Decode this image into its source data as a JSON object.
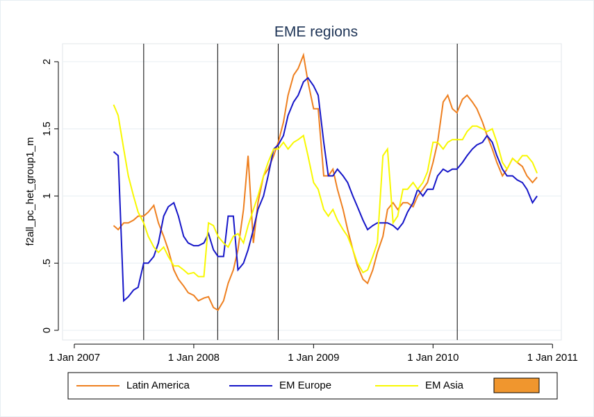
{
  "chart_data": {
    "type": "line",
    "title": "EME regions",
    "y_label": "f2all_pc_het_group1_m",
    "x": [
      "2007-05-01",
      "2007-05-15",
      "2007-06-01",
      "2007-06-15",
      "2007-07-01",
      "2007-07-15",
      "2007-08-01",
      "2007-08-15",
      "2007-09-01",
      "2007-09-15",
      "2007-10-01",
      "2007-10-15",
      "2007-11-01",
      "2007-11-15",
      "2007-12-01",
      "2007-12-15",
      "2008-01-01",
      "2008-01-15",
      "2008-02-01",
      "2008-02-15",
      "2008-03-01",
      "2008-03-15",
      "2008-04-01",
      "2008-04-15",
      "2008-05-01",
      "2008-05-15",
      "2008-06-01",
      "2008-06-15",
      "2008-07-01",
      "2008-07-15",
      "2008-08-01",
      "2008-08-15",
      "2008-09-01",
      "2008-09-15",
      "2008-10-01",
      "2008-10-15",
      "2008-11-01",
      "2008-11-15",
      "2008-12-01",
      "2008-12-15",
      "2009-01-01",
      "2009-01-15",
      "2009-02-01",
      "2009-02-15",
      "2009-03-01",
      "2009-03-15",
      "2009-04-01",
      "2009-04-15",
      "2009-05-01",
      "2009-05-15",
      "2009-06-01",
      "2009-06-15",
      "2009-07-01",
      "2009-07-15",
      "2009-08-01",
      "2009-08-15",
      "2009-09-01",
      "2009-09-15",
      "2009-10-01",
      "2009-10-15",
      "2009-11-01",
      "2009-11-15",
      "2009-12-01",
      "2009-12-15",
      "2010-01-01",
      "2010-01-15",
      "2010-02-01",
      "2010-02-15",
      "2010-03-01",
      "2010-03-15",
      "2010-04-01",
      "2010-04-15",
      "2010-05-01",
      "2010-05-15",
      "2010-06-01",
      "2010-06-15",
      "2010-07-01",
      "2010-07-15",
      "2010-08-01",
      "2010-08-15",
      "2010-09-01",
      "2010-09-15",
      "2010-10-01",
      "2010-10-15",
      "2010-11-01",
      "2010-11-15"
    ],
    "series": [
      {
        "name": "Latin America",
        "color": "#ee7f1f",
        "values": [
          0.78,
          0.75,
          0.8,
          0.8,
          0.82,
          0.85,
          0.85,
          0.88,
          0.93,
          0.8,
          0.7,
          0.6,
          0.45,
          0.38,
          0.33,
          0.28,
          0.26,
          0.22,
          0.24,
          0.25,
          0.17,
          0.15,
          0.22,
          0.35,
          0.45,
          0.6,
          0.9,
          1.3,
          0.65,
          0.95,
          1.15,
          1.2,
          1.3,
          1.4,
          1.55,
          1.75,
          1.9,
          1.95,
          2.05,
          1.85,
          1.65,
          1.65,
          1.15,
          1.15,
          1.2,
          1.05,
          0.9,
          0.75,
          0.6,
          0.48,
          0.38,
          0.35,
          0.45,
          0.58,
          0.7,
          0.9,
          0.95,
          0.9,
          0.95,
          0.95,
          0.92,
          1.0,
          1.05,
          1.1,
          1.25,
          1.4,
          1.7,
          1.75,
          1.65,
          1.62,
          1.72,
          1.75,
          1.7,
          1.65,
          1.55,
          1.45,
          1.35,
          1.25,
          1.15,
          1.2,
          1.28,
          1.25,
          1.22,
          1.15,
          1.1,
          1.14
        ]
      },
      {
        "name": "EM Europe",
        "color": "#1515c8",
        "values": [
          1.33,
          1.3,
          0.22,
          0.25,
          0.3,
          0.32,
          0.5,
          0.5,
          0.55,
          0.65,
          0.85,
          0.92,
          0.95,
          0.85,
          0.7,
          0.65,
          0.63,
          0.63,
          0.65,
          0.72,
          0.6,
          0.55,
          0.55,
          0.85,
          0.85,
          0.45,
          0.5,
          0.6,
          0.75,
          0.9,
          1.0,
          1.15,
          1.35,
          1.38,
          1.45,
          1.6,
          1.7,
          1.75,
          1.85,
          1.88,
          1.82,
          1.75,
          1.4,
          1.15,
          1.15,
          1.2,
          1.15,
          1.1,
          1.0,
          0.92,
          0.82,
          0.75,
          0.78,
          0.8,
          0.8,
          0.8,
          0.78,
          0.75,
          0.8,
          0.88,
          0.95,
          1.05,
          1.0,
          1.05,
          1.05,
          1.15,
          1.2,
          1.18,
          1.2,
          1.2,
          1.25,
          1.3,
          1.35,
          1.38,
          1.4,
          1.45,
          1.4,
          1.3,
          1.2,
          1.15,
          1.15,
          1.12,
          1.1,
          1.05,
          0.95,
          1.0
        ]
      },
      {
        "name": "EM Asia",
        "color": "#f8f800",
        "values": [
          1.68,
          1.6,
          1.35,
          1.15,
          1.0,
          0.88,
          0.8,
          0.7,
          0.62,
          0.58,
          0.62,
          0.55,
          0.48,
          0.48,
          0.45,
          0.42,
          0.43,
          0.4,
          0.4,
          0.8,
          0.78,
          0.7,
          0.65,
          0.62,
          0.7,
          0.72,
          0.65,
          0.78,
          0.9,
          1.0,
          1.15,
          1.25,
          1.35,
          1.35,
          1.4,
          1.35,
          1.4,
          1.42,
          1.45,
          1.3,
          1.1,
          1.05,
          0.9,
          0.85,
          0.9,
          0.82,
          0.75,
          0.7,
          0.6,
          0.5,
          0.43,
          0.45,
          0.55,
          0.65,
          1.3,
          1.35,
          0.8,
          0.85,
          1.05,
          1.05,
          1.1,
          1.05,
          1.1,
          1.18,
          1.4,
          1.4,
          1.35,
          1.4,
          1.42,
          1.42,
          1.42,
          1.48,
          1.52,
          1.52,
          1.5,
          1.48,
          1.5,
          1.4,
          1.25,
          1.2,
          1.28,
          1.25,
          1.3,
          1.3,
          1.25,
          1.17
        ]
      }
    ],
    "event_lines": [
      "2007-08-01",
      "2008-03-14",
      "2008-09-15",
      "2010-03-16"
    ],
    "xlim": [
      "2006-11-26",
      "2011-01-28"
    ],
    "xticks": [
      {
        "value": "2007-01-01",
        "label": "1 Jan 2007"
      },
      {
        "value": "2008-01-01",
        "label": "1 Jan 2008"
      },
      {
        "value": "2009-01-01",
        "label": "1 Jan 2009"
      },
      {
        "value": "2010-01-01",
        "label": "1 Jan 2010"
      },
      {
        "value": "2011-01-01",
        "label": "1 Jan 2011"
      }
    ],
    "ylim": [
      -0.072,
      2.134
    ],
    "yticks": [
      0,
      {
        "value": 0.5,
        "label": ".5"
      },
      1,
      1.5,
      2
    ],
    "grid": true
  }
}
